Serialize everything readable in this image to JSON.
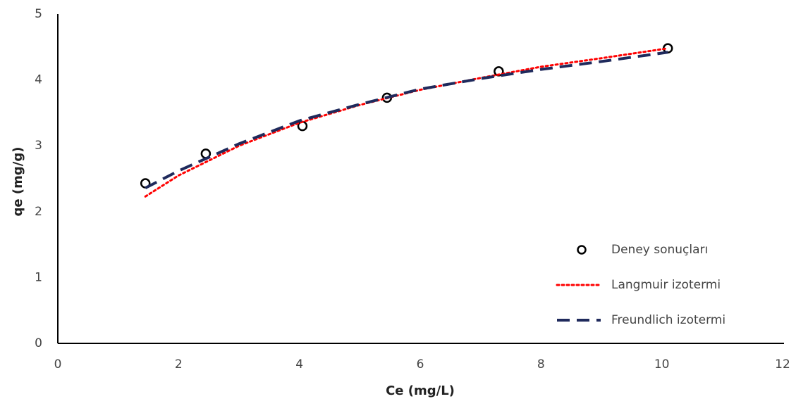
{
  "chart_data": {
    "type": "scatter",
    "xlabel": "Ce (mg/L)",
    "ylabel": "qe (mg/g)",
    "xlim": [
      0,
      12
    ],
    "xticks": [
      0,
      2,
      4,
      6,
      8,
      10,
      12
    ],
    "ylim": [
      0,
      5
    ],
    "yticks": [
      0,
      1,
      2,
      3,
      4,
      5
    ],
    "grid": false,
    "legend": "lower right",
    "series": [
      {
        "name": "Deney sonuçları",
        "color": "#000000",
        "style": "marker",
        "x": [
          1.45,
          2.45,
          4.05,
          5.45,
          7.3,
          10.1
        ],
        "values": [
          2.43,
          2.88,
          3.3,
          3.73,
          4.13,
          4.48
        ]
      },
      {
        "name": "Langmuir izotermi",
        "color": "#ff0000",
        "style": "dotted",
        "x": [
          1.45,
          2,
          3,
          4,
          5,
          6,
          7,
          8,
          9,
          10.1
        ],
        "values": [
          2.23,
          2.55,
          3.0,
          3.35,
          3.62,
          3.85,
          4.03,
          4.2,
          4.33,
          4.48
        ]
      },
      {
        "name": "Freundlich izotermi",
        "color": "#1f2a5c",
        "style": "dashed",
        "x": [
          1.45,
          2,
          3,
          4,
          5,
          6,
          7,
          8,
          9,
          10.1
        ],
        "values": [
          2.36,
          2.62,
          3.03,
          3.38,
          3.63,
          3.86,
          4.02,
          4.16,
          4.28,
          4.42
        ]
      }
    ]
  }
}
